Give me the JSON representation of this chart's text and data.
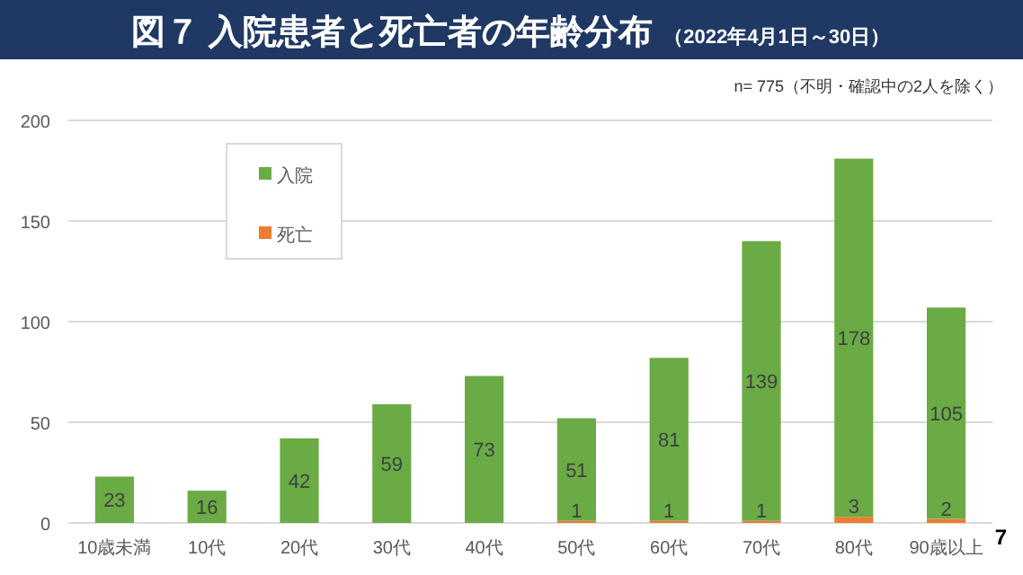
{
  "chart_data": {
    "type": "bar",
    "title": "図７ 入院患者と死亡者の年齢分布",
    "subtitle": "（2022年4月1日～30日）",
    "annotations": [
      "n= 775（不明・確認中の2人を除く）",
      "7"
    ],
    "categories": [
      "10歳未満",
      "10代",
      "20代",
      "30代",
      "40代",
      "50代",
      "60代",
      "70代",
      "80代",
      "90歳以上"
    ],
    "stacked": true,
    "series": [
      {
        "name": "死亡",
        "color": "#ed7d31",
        "values": [
          0,
          0,
          0,
          0,
          0,
          1,
          1,
          1,
          3,
          2
        ],
        "value_labels": [
          null,
          null,
          null,
          null,
          null,
          "1",
          "1",
          "1",
          "3",
          "2"
        ]
      },
      {
        "name": "入院",
        "color": "#6aab45",
        "values": [
          23,
          16,
          42,
          59,
          73,
          51,
          81,
          139,
          178,
          105
        ],
        "value_labels": [
          "23",
          "16",
          "42",
          "59",
          "73",
          "51",
          "81",
          "139",
          "178",
          "105"
        ]
      }
    ],
    "ylim": [
      0,
      200
    ],
    "yticks": [
      0,
      50,
      100,
      150,
      200
    ],
    "grid": "y",
    "legend": "top left"
  }
}
